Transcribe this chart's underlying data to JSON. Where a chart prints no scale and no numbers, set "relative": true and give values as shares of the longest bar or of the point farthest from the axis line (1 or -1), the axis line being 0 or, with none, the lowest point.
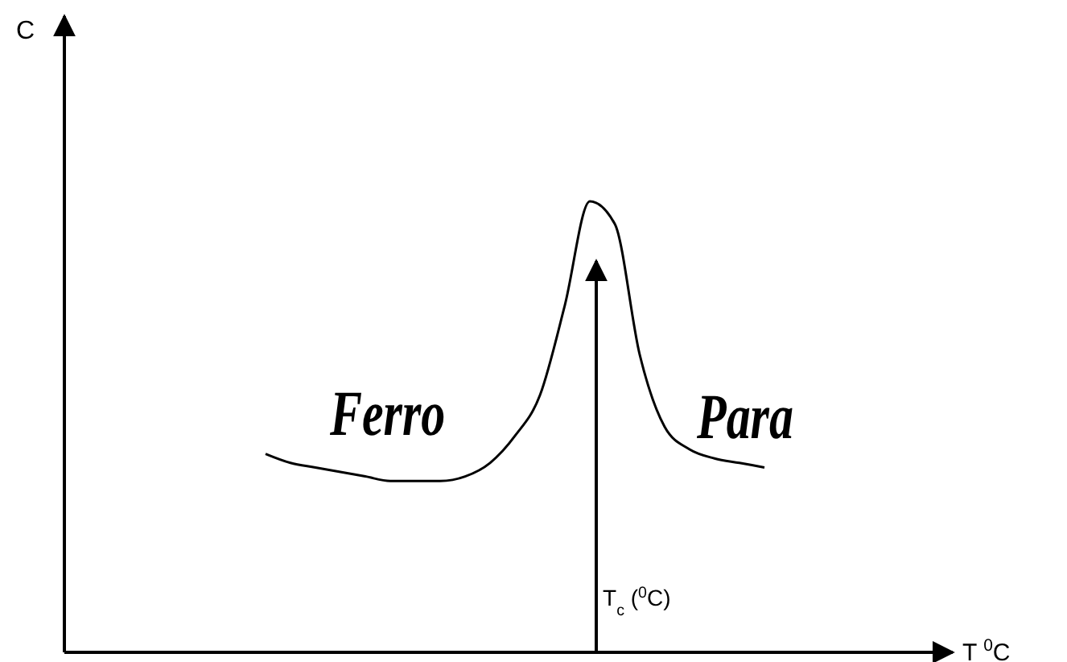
{
  "chart_data": {
    "type": "line",
    "relative": true,
    "categories": [
      null,
      null,
      null,
      null,
      null,
      null,
      null,
      null,
      null,
      null,
      null,
      null,
      null,
      null,
      null,
      null,
      null,
      null,
      null,
      null,
      null
    ],
    "series": [
      {
        "color": "#000000",
        "values": [
          0.44,
          0.42,
          0.41,
          0.4,
          0.39,
          0.38,
          0.38,
          0.38,
          0.39,
          0.42,
          0.48,
          0.57,
          0.77,
          1,
          0.95,
          0.66,
          0.5,
          0.45,
          0.43,
          0.42,
          0.41
        ]
      }
    ],
    "annotations": [
      "Ferro",
      "Para",
      "T$_{c}$ ($^{0}$C)",
      "C",
      "T $^{0}$C"
    ],
    "tick_labels": false,
    "grid": false,
    "marker": "none",
    "line_style": "solid"
  }
}
